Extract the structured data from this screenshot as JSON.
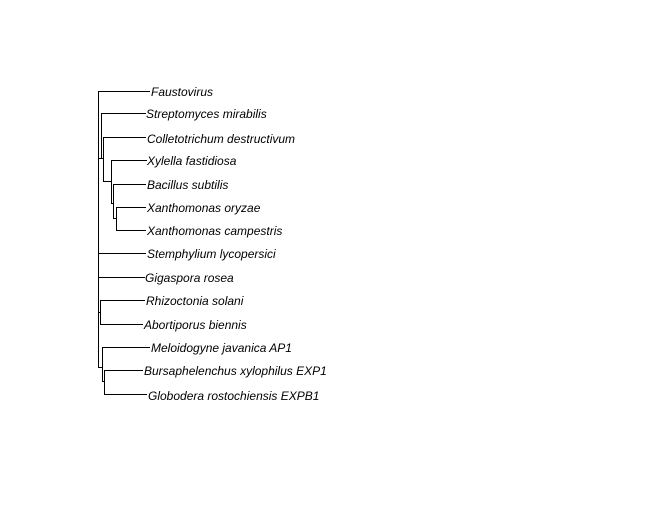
{
  "tree": {
    "taxa": [
      "Faustovirus",
      "Streptomyces mirabilis",
      "Colletotrichum destructivum",
      "Xylella fastidiosa",
      "Bacillus subtilis",
      "Xanthomonas oryzae",
      "Xanthomonas campestris",
      "Stemphylium lycopersici",
      "Gigaspora rosea",
      "Rhizoctonia solani",
      "Abortiporus biennis",
      "Meloidogyne javanica AP1",
      "Bursaphelenchus xylophilus EXP1",
      "Globodera rostochiensis EXPB1"
    ]
  }
}
